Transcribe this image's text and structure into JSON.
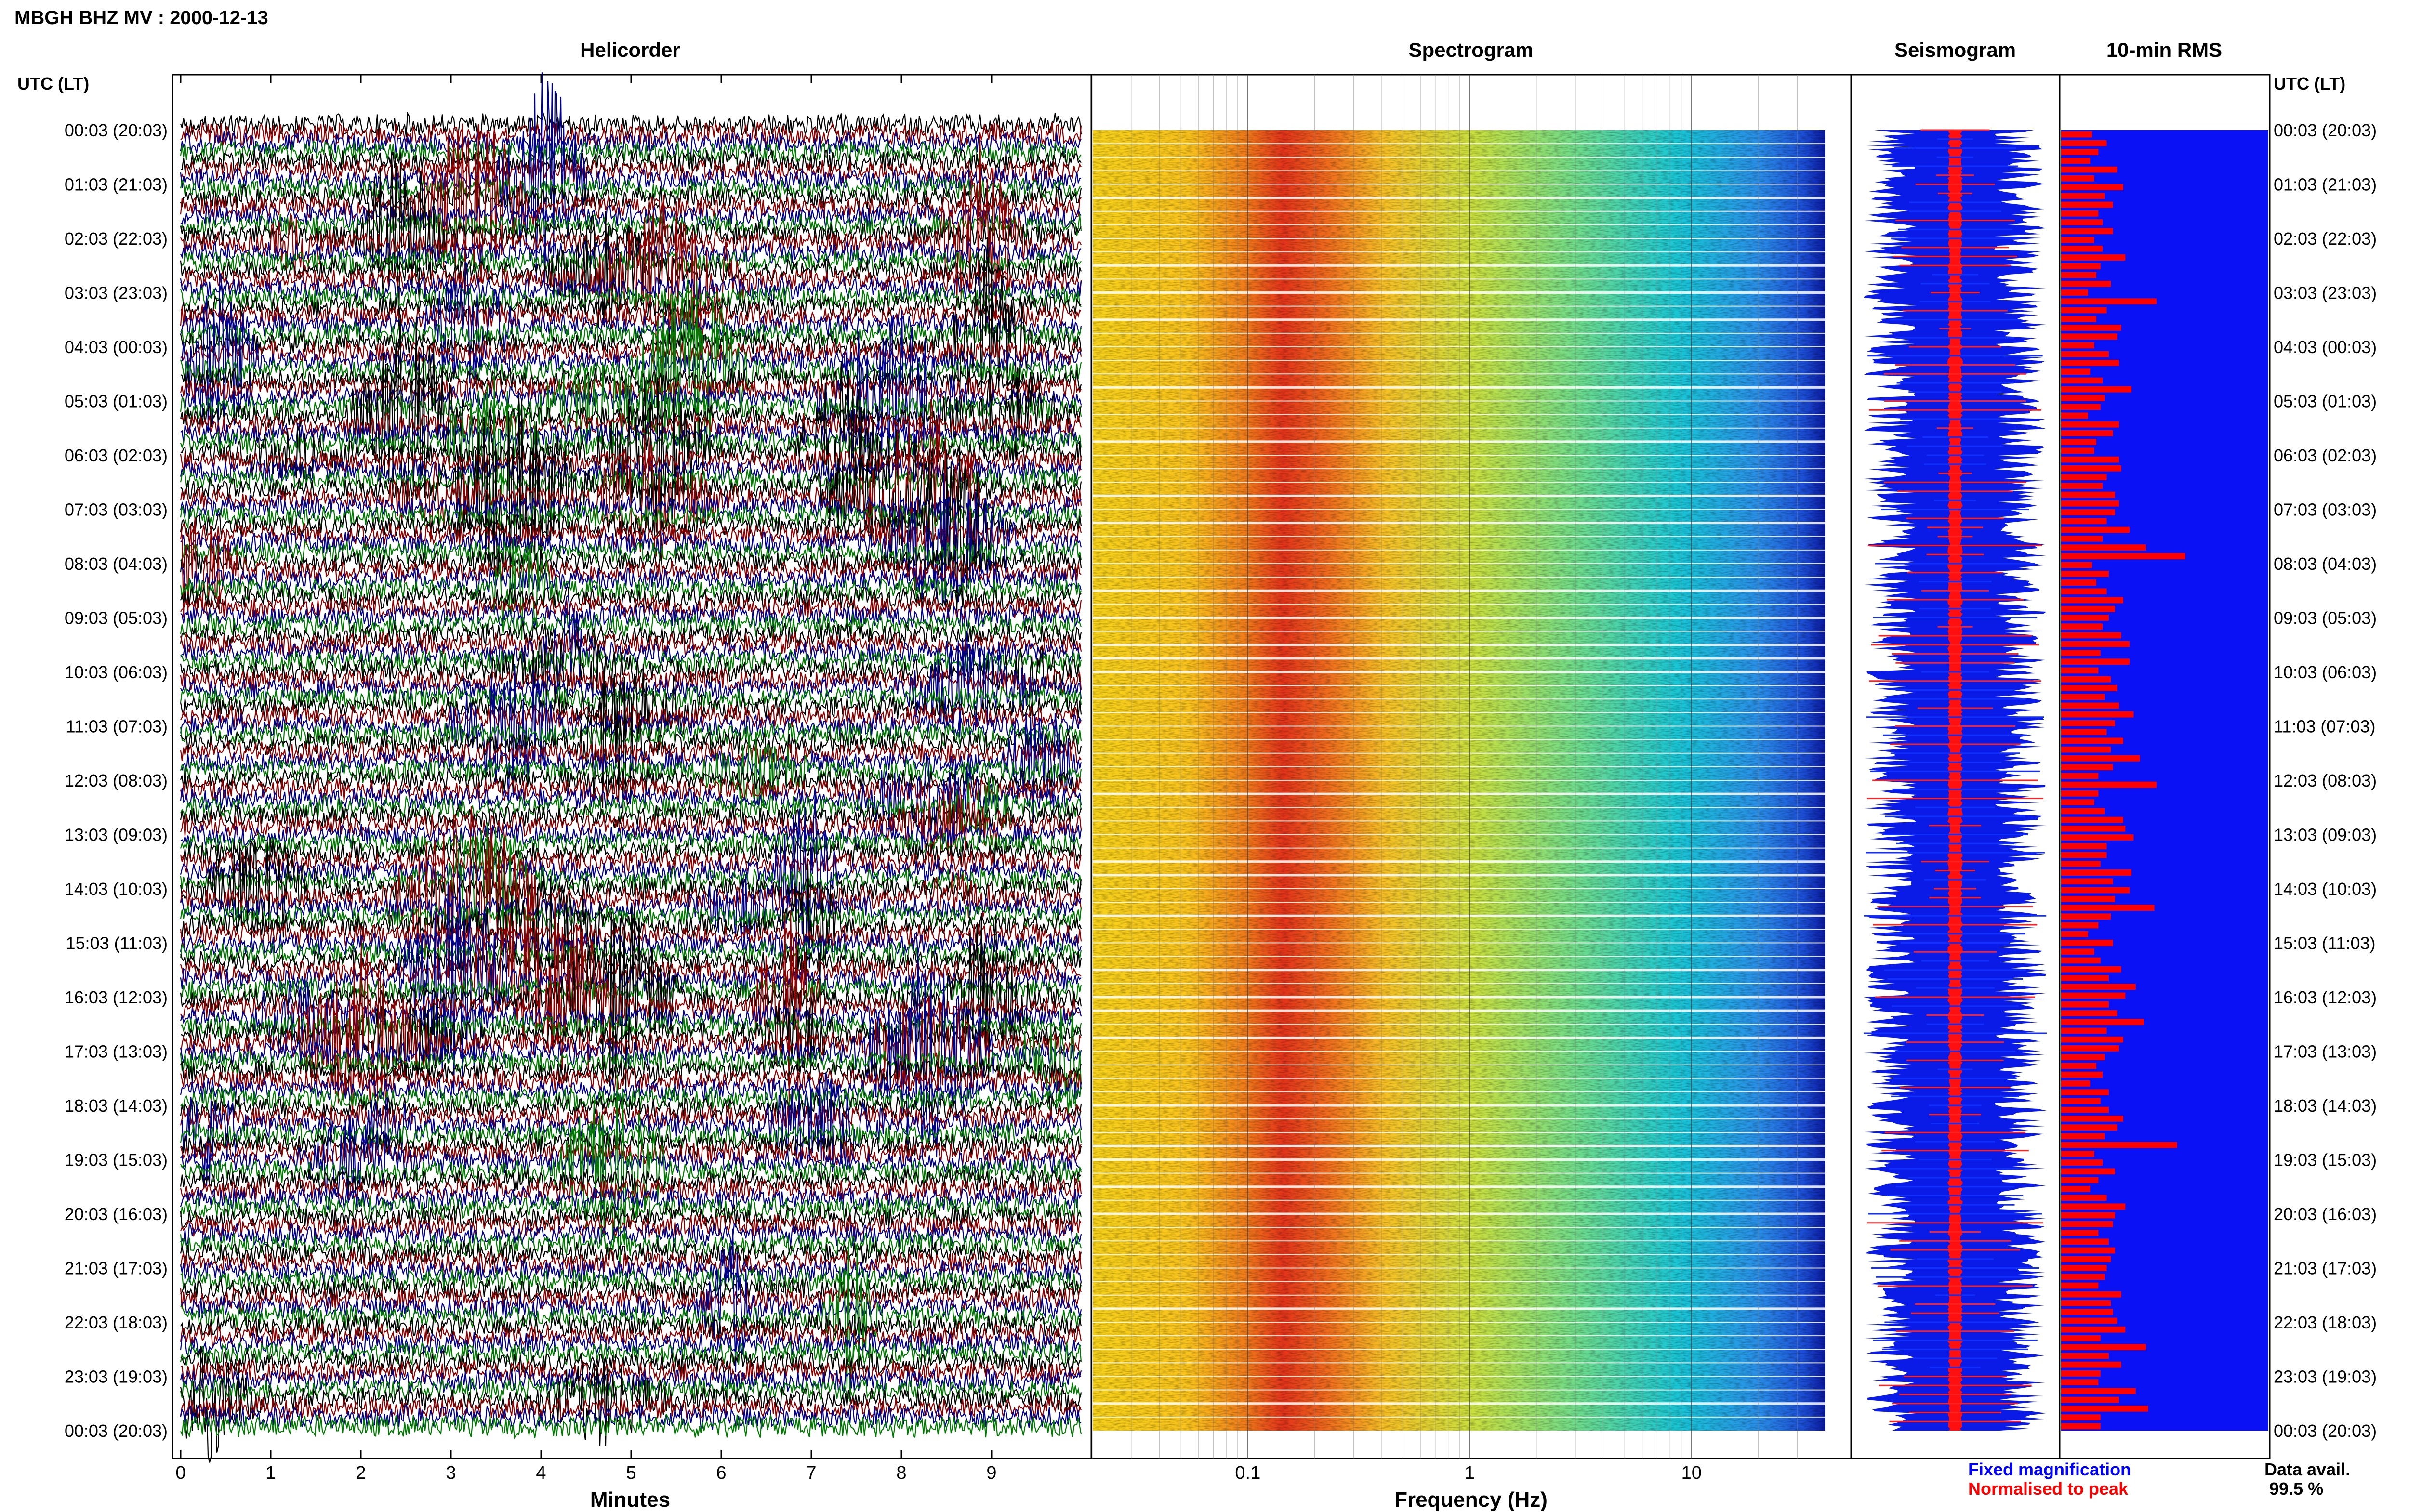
{
  "chart_data": {
    "type": "heatmap",
    "title": "MBGH BHZ MV : 2000-12-13",
    "time_axis": {
      "label": "UTC (LT)",
      "labels": [
        "00:03 (20:03)",
        "01:03 (21:03)",
        "02:03 (22:03)",
        "03:03 (23:03)",
        "04:03 (00:03)",
        "05:03 (01:03)",
        "06:03 (02:03)",
        "07:03 (03:03)",
        "08:03 (04:03)",
        "09:03 (05:03)",
        "10:03 (06:03)",
        "11:03 (07:03)",
        "12:03 (08:03)",
        "13:03 (09:03)",
        "14:03 (10:03)",
        "15:03 (11:03)",
        "16:03 (12:03)",
        "17:03 (13:03)",
        "18:03 (14:03)",
        "19:03 (15:03)",
        "20:03 (16:03)",
        "21:03 (17:03)",
        "22:03 (18:03)",
        "23:03 (19:03)",
        "00:03 (20:03)"
      ]
    },
    "helicorder": {
      "title": "Helicorder",
      "xlabel": "Minutes",
      "xticks": [
        "0",
        "1",
        "2",
        "3",
        "4",
        "5",
        "6",
        "7",
        "8",
        "9"
      ],
      "trace_colors": [
        "#000000",
        "#8b0000",
        "#00008b",
        "#007a00"
      ]
    },
    "spectrogram": {
      "title": "Spectrogram",
      "xlabel": "Frequency (Hz)",
      "xscale": "log",
      "xticks": [
        "0.1",
        "1",
        "10"
      ],
      "xlim": [
        0.02,
        40
      ]
    },
    "seismogram": {
      "title": "Seismogram",
      "legend": [
        {
          "label": "Fixed magnification",
          "color": "#0000ff"
        },
        {
          "label": "Normalised to peak",
          "color": "#ff0000"
        }
      ]
    },
    "rms": {
      "title": "10-min RMS",
      "bar_color": "#ff0000",
      "background_color": "#0000ff",
      "values": [
        0.15,
        0.22,
        0.18,
        0.14,
        0.27,
        0.16,
        0.3,
        0.21,
        0.25,
        0.18,
        0.2,
        0.25,
        0.16,
        0.2,
        0.31,
        0.19,
        0.17,
        0.24,
        0.13,
        0.46,
        0.22,
        0.17,
        0.29,
        0.27,
        0.16,
        0.23,
        0.28,
        0.14,
        0.2,
        0.34,
        0.21,
        0.19,
        0.13,
        0.28,
        0.25,
        0.17,
        0.16,
        0.28,
        0.29,
        0.22,
        0.2,
        0.26,
        0.28,
        0.26,
        0.22,
        0.33,
        0.2,
        0.41,
        0.6,
        0.15,
        0.23,
        0.17,
        0.22,
        0.3,
        0.26,
        0.23,
        0.2,
        0.29,
        0.33,
        0.19,
        0.33,
        0.18,
        0.24,
        0.27,
        0.21,
        0.28,
        0.35,
        0.26,
        0.22,
        0.3,
        0.24,
        0.38,
        0.25,
        0.18,
        0.46,
        0.18,
        0.16,
        0.21,
        0.3,
        0.31,
        0.35,
        0.22,
        0.22,
        0.19,
        0.34,
        0.25,
        0.33,
        0.26,
        0.45,
        0.24,
        0.18,
        0.13,
        0.25,
        0.16,
        0.19,
        0.29,
        0.23,
        0.36,
        0.31,
        0.23,
        0.27,
        0.4,
        0.22,
        0.3,
        0.28,
        0.21,
        0.17,
        0.2,
        0.14,
        0.23,
        0.19,
        0.23,
        0.3,
        0.27,
        0.21,
        0.56,
        0.16,
        0.2,
        0.26,
        0.18,
        0.14,
        0.22,
        0.31,
        0.26,
        0.25,
        0.18,
        0.23,
        0.26,
        0.24,
        0.22,
        0.21,
        0.18,
        0.29,
        0.24,
        0.25,
        0.27,
        0.31,
        0.19,
        0.41,
        0.23,
        0.29,
        0.19,
        0.18,
        0.36,
        0.28,
        0.42,
        0.19,
        0.19
      ]
    },
    "data_availability": {
      "label": "Data avail.",
      "value": "99.5 %"
    }
  }
}
